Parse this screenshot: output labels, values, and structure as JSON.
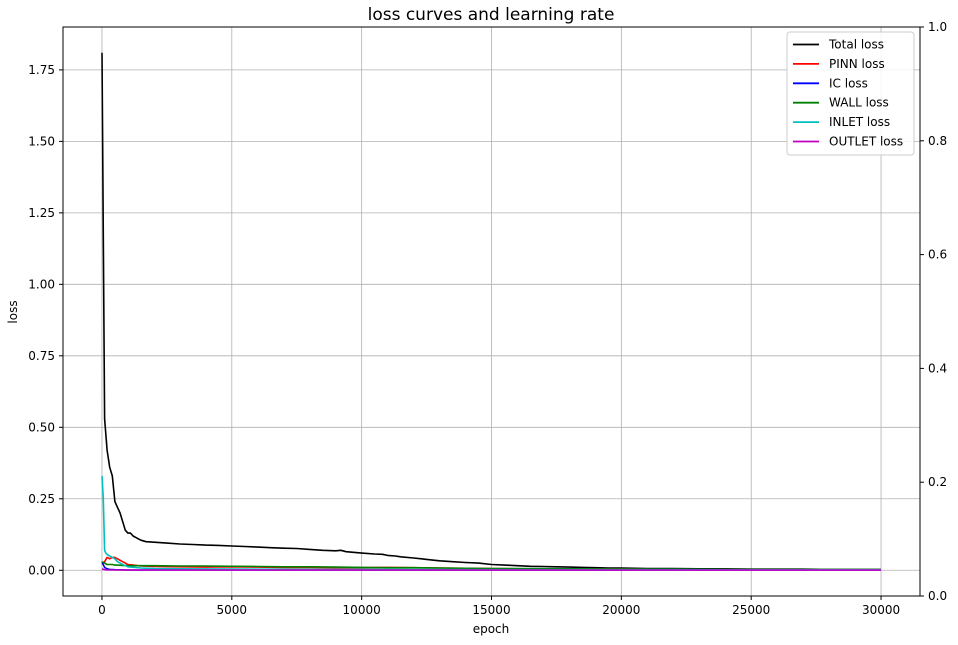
{
  "chart_data": {
    "type": "line",
    "title": "loss curves and learning rate",
    "xlabel": "epoch",
    "ylabel": "loss",
    "xlim": [
      -1500,
      31500
    ],
    "ylim": [
      -0.09,
      1.9
    ],
    "y2lim": [
      0.0,
      1.0
    ],
    "xticks": [
      0,
      5000,
      10000,
      15000,
      20000,
      25000,
      30000
    ],
    "xtick_labels": [
      "0",
      "5000",
      "10000",
      "15000",
      "20000",
      "25000",
      "30000"
    ],
    "yticks": [
      0.0,
      0.25,
      0.5,
      0.75,
      1.0,
      1.25,
      1.5,
      1.75
    ],
    "ytick_labels": [
      "0.00",
      "0.25",
      "0.50",
      "0.75",
      "1.00",
      "1.25",
      "1.50",
      "1.75"
    ],
    "y2ticks": [
      0.0,
      0.2,
      0.4,
      0.6,
      0.8,
      1.0
    ],
    "y2tick_labels": [
      "0.0",
      "0.2",
      "0.4",
      "0.6",
      "0.8",
      "1.0"
    ],
    "grid": true,
    "legend_position": "top-right",
    "series": [
      {
        "name": "Total loss",
        "color": "#000000",
        "x": [
          0,
          100,
          200,
          300,
          400,
          500,
          600,
          700,
          800,
          900,
          1000,
          1100,
          1200,
          1300,
          1400,
          1500,
          1700,
          2000,
          2500,
          3000,
          3500,
          4000,
          4500,
          5000,
          5500,
          6000,
          6500,
          7000,
          7500,
          8000,
          8500,
          9000,
          9200,
          9400,
          10000,
          10500,
          10800,
          11000,
          11300,
          11500,
          12000,
          12300,
          12500,
          13000,
          13500,
          14000,
          14500,
          15000,
          15500,
          15800,
          16000,
          16500,
          17000,
          17500,
          18000,
          18500,
          19000,
          19500,
          20000,
          20500,
          21000,
          22000,
          23000,
          24000,
          25000,
          26000,
          27000,
          28000,
          29000,
          30000
        ],
        "y": [
          1.81,
          0.53,
          0.42,
          0.36,
          0.33,
          0.24,
          0.22,
          0.2,
          0.17,
          0.14,
          0.13,
          0.13,
          0.12,
          0.115,
          0.11,
          0.105,
          0.1,
          0.098,
          0.095,
          0.092,
          0.09,
          0.088,
          0.087,
          0.085,
          0.083,
          0.081,
          0.079,
          0.077,
          0.076,
          0.073,
          0.07,
          0.068,
          0.07,
          0.065,
          0.06,
          0.057,
          0.056,
          0.052,
          0.05,
          0.047,
          0.043,
          0.04,
          0.038,
          0.033,
          0.03,
          0.027,
          0.025,
          0.02,
          0.018,
          0.017,
          0.016,
          0.014,
          0.013,
          0.012,
          0.011,
          0.01,
          0.009,
          0.008,
          0.008,
          0.007,
          0.006,
          0.006,
          0.005,
          0.005,
          0.004,
          0.004,
          0.004,
          0.003,
          0.003,
          0.003
        ]
      },
      {
        "name": "PINN loss",
        "color": "#ff0000",
        "x": [
          0,
          100,
          200,
          300,
          400,
          500,
          600,
          700,
          800,
          900,
          1000,
          1200,
          1500,
          2000,
          3000,
          4000,
          5000,
          6000,
          7000,
          8000,
          9000,
          10000,
          11000,
          12000,
          13000,
          14000,
          15000,
          16000,
          18000,
          20000,
          22000,
          24000,
          26000,
          28000,
          30000
        ],
        "y": [
          0.02,
          0.03,
          0.045,
          0.04,
          0.045,
          0.045,
          0.04,
          0.035,
          0.03,
          0.025,
          0.02,
          0.018,
          0.015,
          0.013,
          0.012,
          0.011,
          0.012,
          0.011,
          0.01,
          0.01,
          0.009,
          0.009,
          0.01,
          0.009,
          0.008,
          0.007,
          0.006,
          0.005,
          0.004,
          0.004,
          0.003,
          0.003,
          0.003,
          0.003,
          0.003
        ]
      },
      {
        "name": "IC loss",
        "color": "#0000ff",
        "x": [
          0,
          100,
          200,
          300,
          500,
          1000,
          2000,
          5000,
          10000,
          15000,
          20000,
          25000,
          30000
        ],
        "y": [
          0.03,
          0.01,
          0.005,
          0.003,
          0.002,
          0.001,
          0.001,
          0.001,
          0.001,
          0.001,
          0.001,
          0.001,
          0.001
        ]
      },
      {
        "name": "WALL loss",
        "color": "#008000",
        "x": [
          0,
          100,
          200,
          300,
          400,
          500,
          600,
          800,
          1000,
          1500,
          2000,
          3000,
          4000,
          5000,
          6000,
          7000,
          8000,
          9000,
          10000,
          11000,
          12000,
          13000,
          14000,
          15000,
          16000,
          18000,
          20000,
          22000,
          24000,
          26000,
          28000,
          30000
        ],
        "y": [
          0.03,
          0.025,
          0.02,
          0.02,
          0.02,
          0.018,
          0.018,
          0.017,
          0.016,
          0.016,
          0.016,
          0.015,
          0.015,
          0.014,
          0.013,
          0.012,
          0.012,
          0.011,
          0.01,
          0.009,
          0.009,
          0.008,
          0.007,
          0.006,
          0.006,
          0.005,
          0.004,
          0.004,
          0.003,
          0.003,
          0.003,
          0.003
        ]
      },
      {
        "name": "INLET loss",
        "color": "#00bfbf",
        "x": [
          0,
          50,
          100,
          150,
          200,
          300,
          400,
          500,
          600,
          800,
          1000,
          1500,
          2000,
          3000,
          5000,
          10000,
          15000,
          20000,
          25000,
          30000
        ],
        "y": [
          0.33,
          0.25,
          0.07,
          0.06,
          0.055,
          0.05,
          0.045,
          0.04,
          0.03,
          0.02,
          0.012,
          0.008,
          0.006,
          0.005,
          0.004,
          0.003,
          0.002,
          0.002,
          0.002,
          0.002
        ]
      },
      {
        "name": "OUTLET loss",
        "color": "#bf00bf",
        "x": [
          0,
          100,
          200,
          500,
          1000,
          2000,
          5000,
          10000,
          15000,
          20000,
          25000,
          30000
        ],
        "y": [
          0.005,
          0.002,
          0.001,
          0.001,
          0.0005,
          0.0005,
          0.0005,
          0.0005,
          0.0005,
          0.0005,
          0.0005,
          0.0005
        ]
      }
    ]
  }
}
